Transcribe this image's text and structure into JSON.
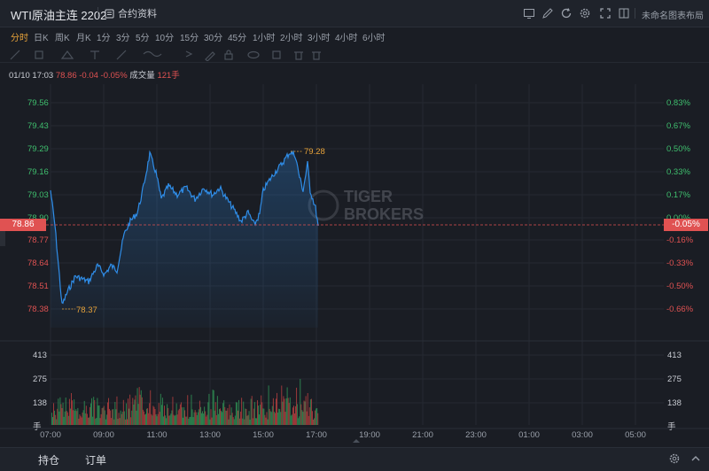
{
  "header": {
    "title": "WTI原油主连 2202",
    "contract_info": "合约资料",
    "layout_name": "未命名图表布局"
  },
  "timeframes": [
    {
      "label": "分时",
      "active": true
    },
    {
      "label": "日K",
      "active": false
    },
    {
      "label": "周K",
      "active": false
    },
    {
      "label": "月K",
      "active": false
    },
    {
      "label": "1分",
      "active": false
    },
    {
      "label": "3分",
      "active": false
    },
    {
      "label": "5分",
      "active": false
    },
    {
      "label": "10分",
      "active": false
    },
    {
      "label": "15分",
      "active": false
    },
    {
      "label": "30分",
      "active": false
    },
    {
      "label": "45分",
      "active": false
    },
    {
      "label": "1小时",
      "active": false
    },
    {
      "label": "2小时",
      "active": false
    },
    {
      "label": "3小时",
      "active": false
    },
    {
      "label": "4小时",
      "active": false
    },
    {
      "label": "6小时",
      "active": false
    }
  ],
  "info": {
    "datetime": "01/10 17:03",
    "price": "78.86",
    "change": "-0.04",
    "change_pct": "-0.05%",
    "volume_label": "成交量",
    "volume": "121手"
  },
  "watermark": {
    "line1": "TIGER",
    "line2": "BROKERS"
  },
  "price_axis": [
    "79.56",
    "79.43",
    "79.29",
    "79.16",
    "79.03",
    "78.90",
    "78.77",
    "78.64",
    "78.51",
    "78.38"
  ],
  "pct_axis": [
    "0.83%",
    "0.67%",
    "0.50%",
    "0.33%",
    "0.17%",
    "0.00%",
    "-0.16%",
    "-0.33%",
    "-0.50%",
    "-0.66%"
  ],
  "current": {
    "price": "78.86",
    "pct": "-0.05%"
  },
  "high_label": "79.28",
  "low_label": "78.37",
  "volume_axis": [
    "413",
    "275",
    "138",
    "手"
  ],
  "time_axis": [
    "07:00",
    "09:00",
    "11:00",
    "13:00",
    "15:00",
    "17:00",
    "19:00",
    "21:00",
    "23:00",
    "01:00",
    "03:00",
    "05:00"
  ],
  "bottom_tabs": [
    "持仓",
    "订单"
  ],
  "colors": {
    "up": "#3fbf6e",
    "down": "#e05252",
    "line": "#2f8de8",
    "accent": "#e8a33a",
    "bg": "#1a1d24"
  }
}
